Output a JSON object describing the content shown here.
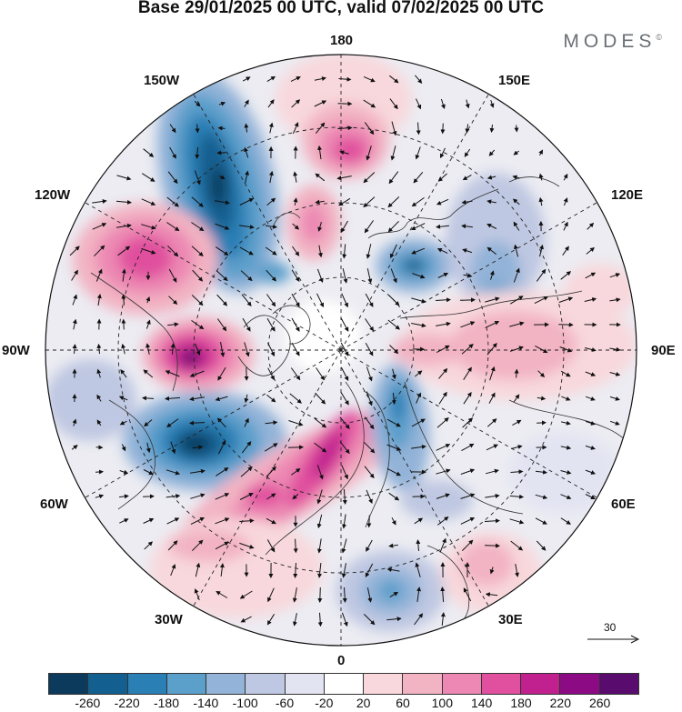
{
  "title": "Base 29/01/2025 00 UTC, valid 07/02/2025 00 UTC",
  "brand": {
    "name": "MODES",
    "mark": "©"
  },
  "longitude_labels": {
    "top": "180",
    "bottom": "0",
    "left": "90W",
    "right": "90E",
    "ul1": "150W",
    "ul2": "120W",
    "ur1": "150E",
    "ur2": "120E",
    "ll1": "60W",
    "ll2": "30W",
    "lr1": "60E",
    "lr2": "30E"
  },
  "vector_scale": {
    "value": "30"
  },
  "colorbar": {
    "colors": [
      "#0c3a5c",
      "#135f8f",
      "#2a7fb5",
      "#5b9fcb",
      "#93b3d8",
      "#bfc8e2",
      "#e3e4f2",
      "#ffffff",
      "#f8d8dc",
      "#f2b3c3",
      "#ec88b3",
      "#e0509e",
      "#c1208f",
      "#8c0b84",
      "#5a0c6e"
    ],
    "ticks": [
      "-260",
      "-220",
      "-180",
      "-140",
      "-100",
      "-60",
      "-20",
      "20",
      "60",
      "100",
      "140",
      "180",
      "220",
      "260"
    ]
  },
  "anomaly_centres": [
    {
      "region": "150W",
      "value": -260
    },
    {
      "region": "120W",
      "value": 180
    },
    {
      "region": "90W",
      "value": 260
    },
    {
      "region": "60W",
      "value": -260
    },
    {
      "region": "30W",
      "value": 180
    },
    {
      "region": "180",
      "value": 180
    },
    {
      "region": "150E",
      "value": -140
    },
    {
      "region": "120E",
      "value": -140
    },
    {
      "region": "90E",
      "value": 100
    },
    {
      "region": "30E",
      "value": 100
    },
    {
      "region": "0",
      "value": -140
    }
  ]
}
